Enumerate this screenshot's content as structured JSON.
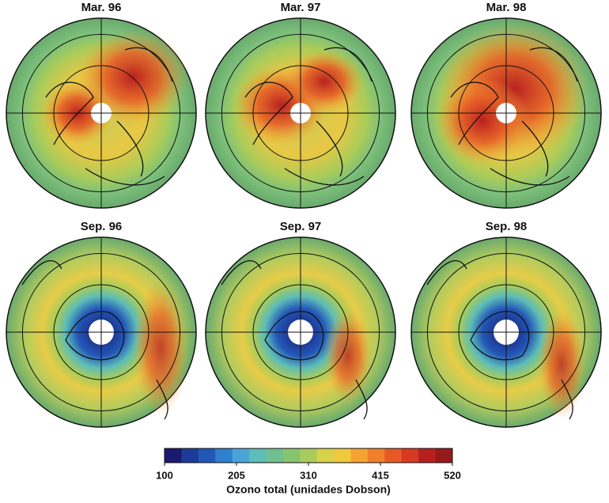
{
  "panels": [
    {
      "title": "Mar. 96"
    },
    {
      "title": "Mar. 97"
    },
    {
      "title": "Mar. 98"
    },
    {
      "title": "Sep. 96"
    },
    {
      "title": "Sep. 97"
    },
    {
      "title": "Sep. 98"
    }
  ],
  "colorbar": {
    "label": "Ozono total (unidades Dobson)",
    "lim": [
      100,
      520
    ],
    "ticks": [
      100,
      205,
      310,
      415,
      520
    ],
    "colors": [
      "#1a1a6e",
      "#1f3a9a",
      "#2257b8",
      "#2f7fcf",
      "#4aa3d6",
      "#5dbdb7",
      "#6fbf8f",
      "#86c46f",
      "#a9cc5a",
      "#d6d24a",
      "#f0c83c",
      "#f4a431",
      "#ef7f2a",
      "#e65a25",
      "#d63a22",
      "#b82020",
      "#961a1a"
    ]
  }
}
